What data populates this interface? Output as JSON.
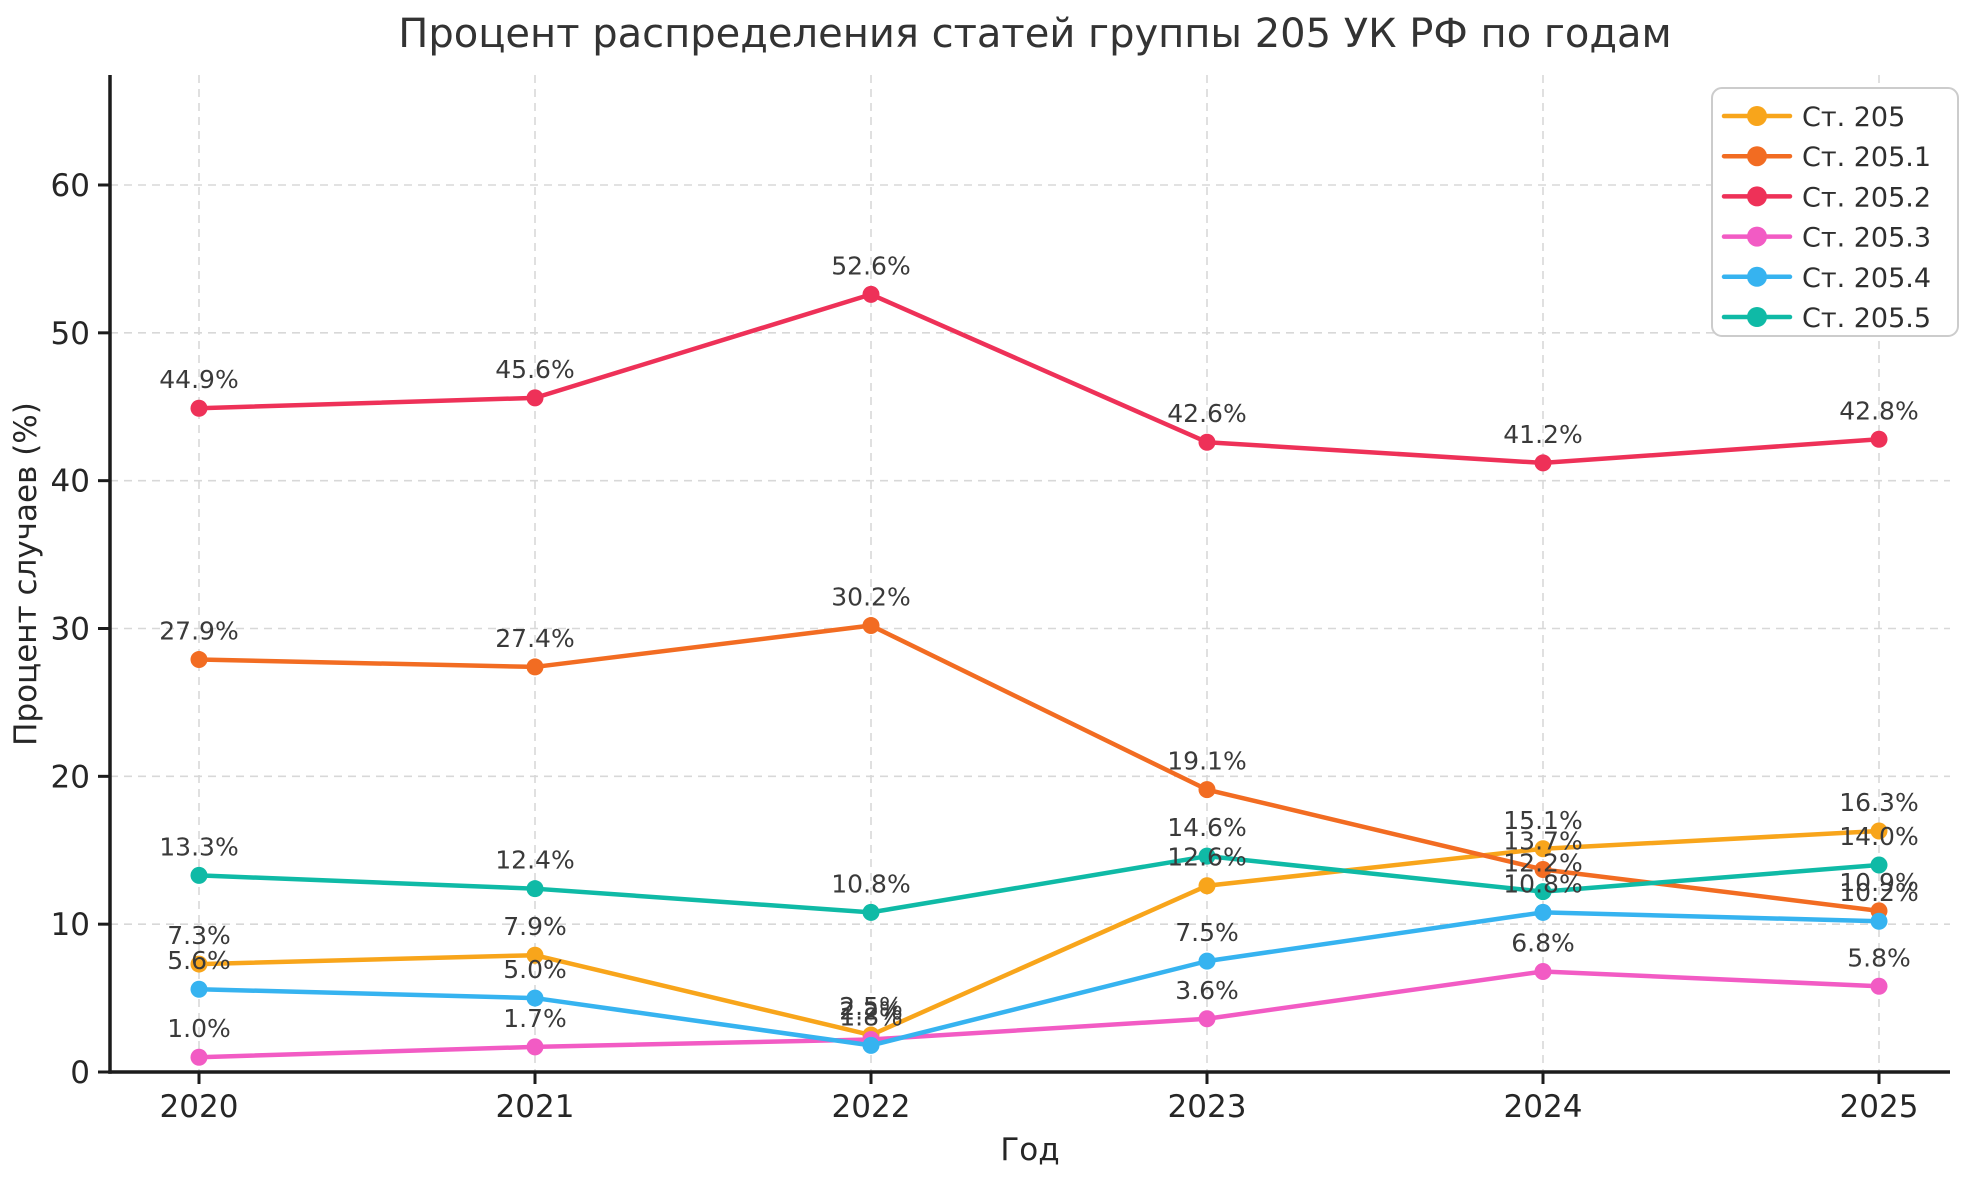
{
  "chart_data": {
    "type": "line",
    "title": "Процент распределения статей группы 205 УК РФ по годам",
    "xlabel": "Год",
    "ylabel": "Процент случаев (%)",
    "x": [
      2020,
      2021,
      2022,
      2023,
      2024,
      2025
    ],
    "yticks": [
      0,
      10,
      20,
      30,
      40,
      50,
      60
    ],
    "ylim": [
      0,
      67.5
    ],
    "grid": true,
    "legend_position": "upper right",
    "series": [
      {
        "name": "Ст. 205",
        "color": "#F8A51B",
        "values": [
          7.3,
          7.9,
          2.5,
          12.6,
          15.1,
          16.3
        ],
        "point_labels": [
          "7.3%",
          "7.9%",
          "2.5%",
          "12.6%",
          "15.1%",
          "16.3%"
        ]
      },
      {
        "name": "Ст. 205.1",
        "color": "#F26C22",
        "values": [
          27.9,
          27.4,
          30.2,
          19.1,
          13.7,
          10.9
        ],
        "point_labels": [
          "27.9%",
          "27.4%",
          "30.2%",
          "19.1%",
          "13.7%",
          "10.9%"
        ]
      },
      {
        "name": "Ст. 205.2",
        "color": "#EE3158",
        "values": [
          44.9,
          45.6,
          52.6,
          42.6,
          41.2,
          42.8
        ],
        "point_labels": [
          "44.9%",
          "45.6%",
          "52.6%",
          "42.6%",
          "41.2%",
          "42.8%"
        ]
      },
      {
        "name": "Ст. 205.3",
        "color": "#F25BC4",
        "values": [
          1.0,
          1.7,
          2.2,
          3.6,
          6.8,
          5.8
        ],
        "point_labels": [
          "1.0%",
          "1.7%",
          "2.2%",
          "3.6%",
          "6.8%",
          "5.8%"
        ]
      },
      {
        "name": "Ст. 205.4",
        "color": "#36B3F0",
        "values": [
          5.6,
          5.0,
          1.8,
          7.5,
          10.8,
          10.2
        ],
        "point_labels": [
          "5.6%",
          "5.0%",
          "1.8%",
          "7.5%",
          "10.8%",
          "10.2%"
        ]
      },
      {
        "name": "Ст. 205.5",
        "color": "#0FBAA6",
        "values": [
          13.3,
          12.4,
          10.8,
          14.6,
          12.2,
          14.0
        ],
        "point_labels": [
          "13.3%",
          "12.4%",
          "10.8%",
          "14.6%",
          "12.2%",
          "14.0%"
        ]
      }
    ],
    "style": {
      "background": "#ffffff",
      "grid_color": "#d8d8d8",
      "axis_color": "#1c1c1c",
      "tick_label_color": "#262626",
      "title_color": "#333333",
      "annotation_color": "#3a3a3a",
      "legend_border_color": "#cccccc",
      "legend_text_color": "#2f2f2f"
    }
  }
}
